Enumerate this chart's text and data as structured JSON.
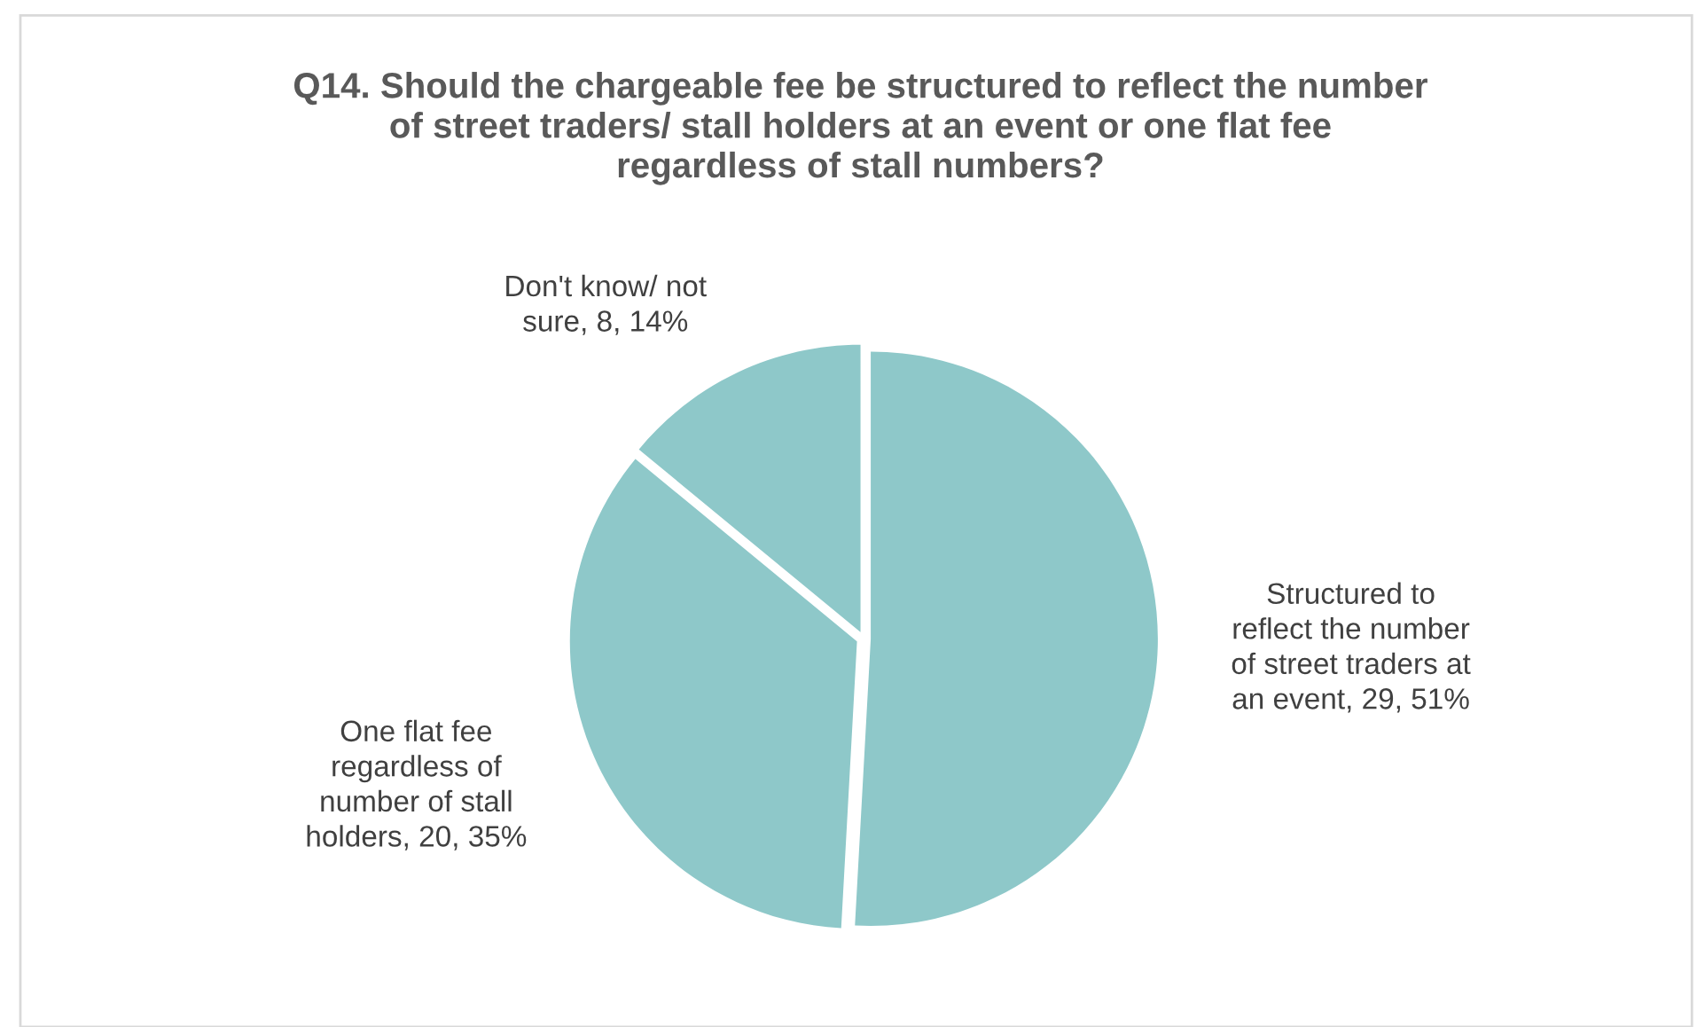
{
  "chart_data": {
    "type": "pie",
    "title": "Q14. Should the chargeable fee be structured to reflect the number of street traders/ stall holders at an event or one flat fee regardless of stall numbers?",
    "categories": [
      "Structured to reflect the number of street traders at an event, 29, 51%",
      "One flat fee regardless of number of stall holders, 20, 35%",
      "Don't know/ not sure, 8, 14%"
    ],
    "values": [
      29,
      20,
      8
    ],
    "colors": [
      "#8ec8c9",
      "#8ec8c9",
      "#8ec8c9"
    ]
  }
}
